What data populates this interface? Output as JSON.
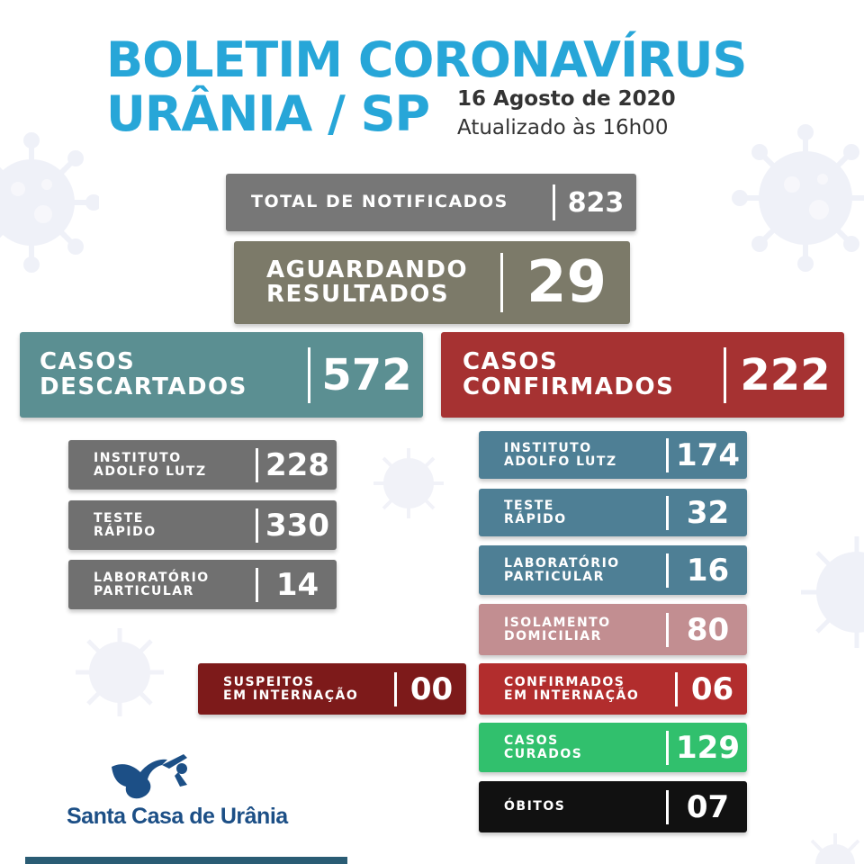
{
  "header": {
    "title_line1": "BOLETIM CORONAVÍRUS",
    "title_line2": "URÂNIA / SP",
    "date": "16 Agosto de 2020",
    "updated": "Atualizado às 16h00"
  },
  "totals": {
    "notificados": {
      "label": "TOTAL DE NOTIFICADOS",
      "value": "823"
    },
    "aguardando": {
      "label": "AGUARDANDO\nRESULTADOS",
      "value": "29"
    },
    "descartados": {
      "label": "CASOS\nDESCARTADOS",
      "value": "572"
    },
    "confirmados": {
      "label": "CASOS\nCONFIRMADOS",
      "value": "222"
    }
  },
  "descartados_items": [
    {
      "label": "INSTITUTO\nADOLFO LUTZ",
      "value": "228"
    },
    {
      "label": "TESTE\nRÁPIDO",
      "value": "330"
    },
    {
      "label": "LABORATÓRIO\nPARTICULAR",
      "value": "14"
    }
  ],
  "suspeitos": {
    "label": "SUSPEITOS\nEM INTERNAÇÃO",
    "value": "00"
  },
  "confirmados_items": [
    {
      "label": "INSTITUTO\nADOLFO LUTZ",
      "value": "174"
    },
    {
      "label": "TESTE\nRÁPIDO",
      "value": "32"
    },
    {
      "label": "LABORATÓRIO\nPARTICULAR",
      "value": "16"
    },
    {
      "label": "ISOLAMENTO\nDOMICILIAR",
      "value": "80"
    },
    {
      "label": "CONFIRMADOS\nEM INTERNAÇÃO",
      "value": "06"
    },
    {
      "label": "CASOS\nCURADOS",
      "value": "129"
    },
    {
      "label": "ÓBITOS",
      "value": "07"
    }
  ],
  "logo": {
    "text": "Santa Casa de Urânia",
    "icon": "pelican-icon"
  },
  "colors": {
    "title": "#27a6d8",
    "notificados": "#777777",
    "aguardando": "#7c7a69",
    "descartados": "#5b8f92",
    "confirmados": "#a63232",
    "gray_rows": "#707070",
    "blue_rows": "#4e7f95",
    "isolamento": "#c28e91",
    "internacao": "#b22d2d",
    "suspeitos": "#7d1a1a",
    "curados": "#31c06d",
    "obitos": "#111111"
  }
}
